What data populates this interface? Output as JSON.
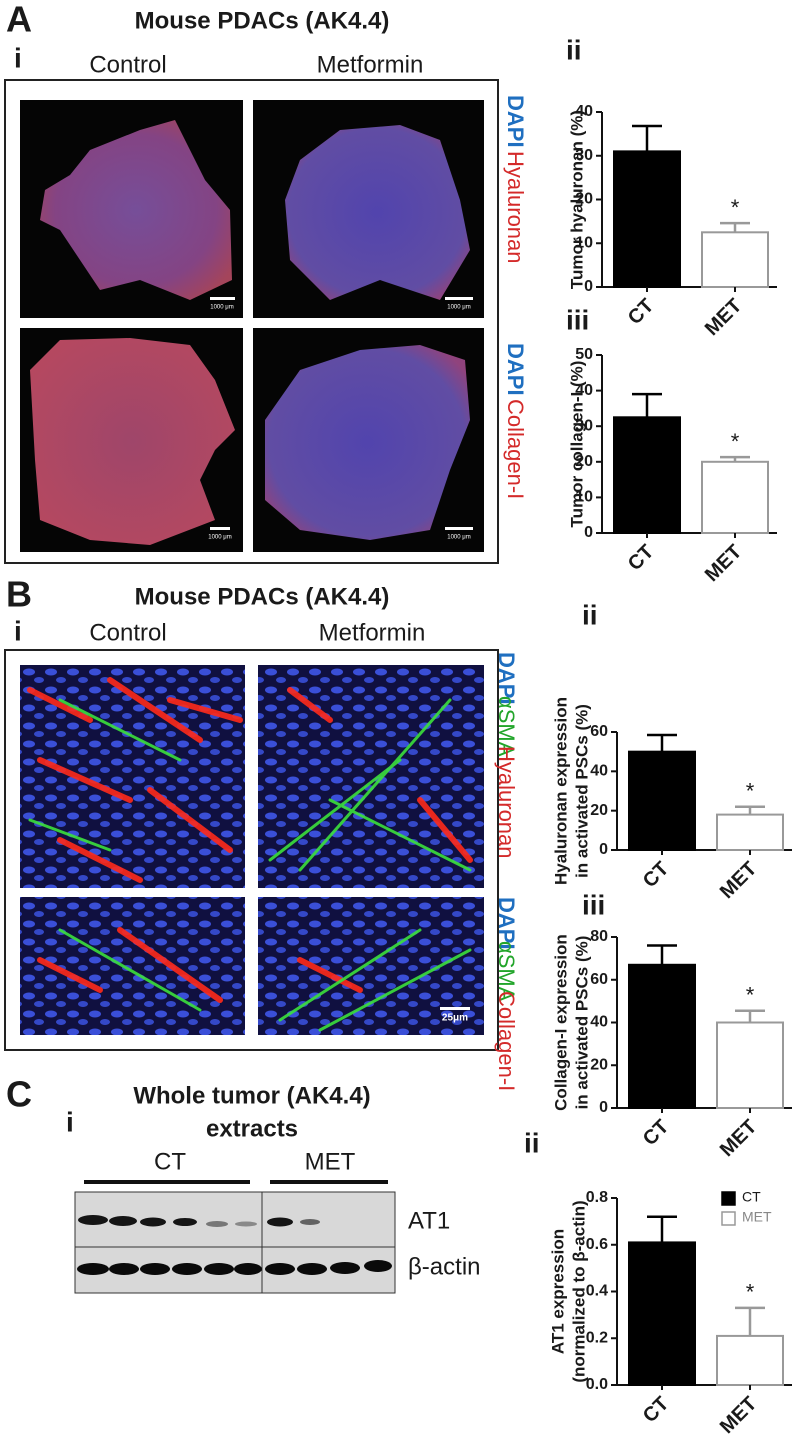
{
  "figure": {
    "A": {
      "letter": "A",
      "title": "Mouse PDACs (AK4.4)",
      "sub": "i",
      "columns": [
        "Control",
        "Metformin"
      ],
      "stains": [
        [
          "DAPI",
          "Hyaluronan"
        ],
        [
          "DAPI",
          "Collagen-I"
        ]
      ],
      "scale_bars": [
        "1000 μm",
        "1000 μm",
        "1000 μm",
        "1000 μm"
      ]
    },
    "B": {
      "letter": "B",
      "title": "Mouse PDACs (AK4.4)",
      "sub": "i",
      "columns": [
        "Control",
        "Metformin"
      ],
      "stains": [
        [
          "DAPI",
          "αSMA",
          "Hyaluronan"
        ],
        [
          "DAPI",
          "αSMA",
          "Collagen-I"
        ]
      ],
      "scale_bar": "25μm"
    },
    "C": {
      "letter": "C",
      "sub": "i",
      "title": [
        "Whole tumor (AK4.4)",
        "extracts"
      ],
      "groups": [
        "CT",
        "MET"
      ],
      "bands": [
        "AT1",
        "β-actin"
      ]
    }
  },
  "chart_data": [
    {
      "type": "bar",
      "panel": "ii",
      "ylabel": [
        "Tumor hyaluronan (%)"
      ],
      "categories": [
        "CT",
        "MET"
      ],
      "values": [
        31,
        12.5
      ],
      "errors": [
        5.8,
        2.1
      ],
      "significance": [
        null,
        "*"
      ],
      "colors": [
        "#000000",
        "#ffffff"
      ],
      "edge_colors": [
        "#000000",
        "#999999"
      ],
      "ylim": [
        0,
        40
      ],
      "yticks": [
        0,
        10,
        20,
        30,
        40
      ]
    },
    {
      "type": "bar",
      "panel": "iii",
      "ylabel": [
        "Tumor collagen-I (%)"
      ],
      "categories": [
        "CT",
        "MET"
      ],
      "values": [
        32.5,
        20
      ],
      "errors": [
        6.5,
        1.3
      ],
      "significance": [
        null,
        "*"
      ],
      "colors": [
        "#000000",
        "#ffffff"
      ],
      "edge_colors": [
        "#000000",
        "#999999"
      ],
      "ylim": [
        0,
        50
      ],
      "yticks": [
        0,
        10,
        20,
        30,
        40,
        50
      ]
    },
    {
      "type": "bar",
      "panel": "ii",
      "ylabel": [
        "Hyaluronan expression",
        "in activated PSCs (%)"
      ],
      "categories": [
        "CT",
        "MET"
      ],
      "values": [
        50,
        18
      ],
      "errors": [
        8.5,
        4
      ],
      "significance": [
        null,
        "*"
      ],
      "colors": [
        "#000000",
        "#ffffff"
      ],
      "edge_colors": [
        "#000000",
        "#999999"
      ],
      "ylim": [
        0,
        60
      ],
      "yticks": [
        0,
        20,
        40,
        60
      ]
    },
    {
      "type": "bar",
      "panel": "iii",
      "ylabel": [
        "Collagen-I expression",
        "in activated PSCs (%)"
      ],
      "categories": [
        "CT",
        "MET"
      ],
      "values": [
        67,
        40
      ],
      "errors": [
        9,
        5.5
      ],
      "significance": [
        null,
        "*"
      ],
      "colors": [
        "#000000",
        "#ffffff"
      ],
      "edge_colors": [
        "#000000",
        "#999999"
      ],
      "ylim": [
        0,
        80
      ],
      "yticks": [
        0,
        20,
        40,
        60,
        80
      ]
    },
    {
      "type": "bar",
      "panel": "ii",
      "ylabel": [
        "AT1 expression",
        "(normalized to β-actin)"
      ],
      "categories": [
        "CT",
        "MET"
      ],
      "values": [
        0.61,
        0.21
      ],
      "errors": [
        0.11,
        0.12
      ],
      "significance": [
        null,
        "*"
      ],
      "colors": [
        "#000000",
        "#ffffff"
      ],
      "edge_colors": [
        "#000000",
        "#999999"
      ],
      "ylim": [
        0,
        0.8
      ],
      "yticks": [
        {
          "value": 0,
          "label": "0.0"
        },
        0.2,
        0.4,
        0.6,
        0.8
      ],
      "legend": "upper right"
    }
  ]
}
